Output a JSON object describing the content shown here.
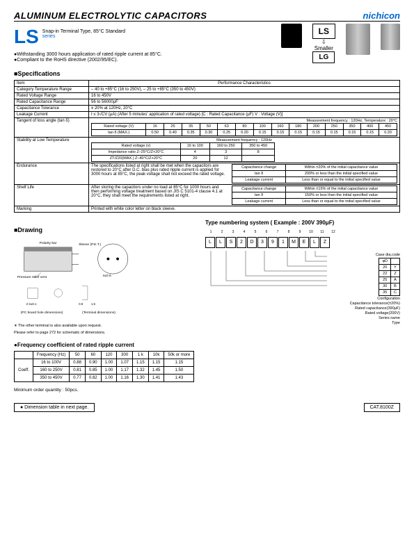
{
  "header": {
    "title": "ALUMINUM  ELECTROLYTIC  CAPACITORS",
    "brand": "nichicon"
  },
  "series": {
    "code": "LS",
    "desc": "Snap-in Terminal Type, 85°C Standard",
    "word": "series"
  },
  "features": [
    "●Withstanding 3000 hours application of rated ripple current at 85°C.",
    "●Compliant to the RoHS directive (2002/95/EC)."
  ],
  "badges": {
    "ls": "LS",
    "smaller": "Smaller",
    "lg": "LG"
  },
  "sec_spec": "■Specifications",
  "spec": {
    "head_item": "Item",
    "head_perf": "Performance Characteristics",
    "rows": [
      {
        "label": "Category Temperature Range",
        "val": "– 40 to +85°C (16 to 250V), – 25 to +85°C (350 to 450V)"
      },
      {
        "label": "Rated Voltage Range",
        "val": "16 to 450V"
      },
      {
        "label": "Rated Capacitance Range",
        "val": "56 to 56000μF"
      },
      {
        "label": "Capacitance Tolerance",
        "val": "± 20% at 120Hz, 20°C"
      },
      {
        "label": "Leakage Current",
        "val": "I ≤ 3√CV (μA) (After 5 minutes' application of rated voltage) [C : Rated Capacitance (μF)  V : Voltage (V)]"
      }
    ],
    "tan_label": "Tangent of loss angle (tan δ)",
    "tan_note": "Measurement frequency : 120Hz,  Temperature : 20°C",
    "tan_head": [
      "Rated voltage (V)",
      "16",
      "25",
      "35",
      "50",
      "63",
      "80",
      "100",
      "160",
      "180",
      "200",
      "250",
      "350",
      "400",
      "450"
    ],
    "tan_row": [
      "tan δ (MAX.)",
      "0.50",
      "0.40",
      "0.35",
      "0.30",
      "0.25",
      "0.20",
      "0.15",
      "0.15",
      "0.15",
      "0.15",
      "0.15",
      "0.15",
      "0.15",
      "0.20"
    ],
    "stab_label": "Stability at Low Temperature",
    "stab_note": "Measurement frequency : 120Hz",
    "stab_head": [
      "Rated voltage (v)",
      "16 to 100",
      "160 to 250",
      "350 to 450"
    ],
    "stab_r1": [
      "Impedance ratio Z–25°C/Z+20°C",
      "4",
      "3",
      "8"
    ],
    "stab_r2": [
      "ZT/Z20(MAX.) Z–40°C/Z+20°C",
      "20",
      "12",
      ""
    ],
    "end_label": "Endurance",
    "end_text": "The specifications listed at right shall be met when the capacitors are restored to 20°C after D.C. bias plus rated ripple current is applied for 3000 hours at 85°C, the peak voltage shall not exceed the rated voltage.",
    "end_t": [
      [
        "Capacitance change",
        "Within ±20% of the initial capacitance value"
      ],
      [
        "tan δ",
        "200% or less than the initial specified value"
      ],
      [
        "Leakage current",
        "Less than or equal to the initial specified value"
      ]
    ],
    "shelf_label": "Shelf Life",
    "shelf_text": "After storing the capacitors under no load at 85°C for 1000 hours and then performing voltage treatment based on JIS C 5101-4 clause 4.1 at 20°C, they shall meet the requirements listed at right.",
    "shelf_t": [
      [
        "Capacitance change",
        "Within ±15% of the initial capacitance value"
      ],
      [
        "tan δ",
        "150% or less than the initial specified value"
      ],
      [
        "Leakage current",
        "Less than or equal to the initial specified value"
      ]
    ],
    "mark_label": "Marking",
    "mark_val": "Printed with white color letter on black sleeve."
  },
  "sec_draw": "■Drawing",
  "drawing": {
    "labels": {
      "polarity": "Polarity bar",
      "sleeve": "Sleeve (P.E.T.)",
      "vent": "Pressure relief vent",
      "pcb": "(PC board hole dimensions)",
      "term": "(Terminal dimensions)"
    },
    "note1": "∗ The other terminal is also available upon request.",
    "note2": "  Please refer to page 272 for schematic of dimensions."
  },
  "type_num": {
    "title": "Type numbering system ( Example : 200V  390μF)",
    "nums": [
      "1",
      "2",
      "3",
      "4",
      "5",
      "6",
      "7",
      "8",
      "9",
      "10",
      "11",
      "12"
    ],
    "chars": [
      "L",
      "L",
      "S",
      "2",
      "D",
      "3",
      "9",
      "1",
      "M",
      "E",
      "L",
      "Z"
    ],
    "labels": [
      "Case dia.code",
      "Configuration",
      "Capacitance tolerance(±20%)",
      "Rated capacitance(390μF)",
      "Rated voltage(200V)",
      "Series name",
      "Type"
    ],
    "case_head": [
      "φD",
      ""
    ],
    "case_rows": [
      [
        "20",
        "Y"
      ],
      [
        "22",
        "Z"
      ],
      [
        "25",
        "A"
      ],
      [
        "30",
        "B"
      ],
      [
        "35",
        "C"
      ]
    ]
  },
  "sec_freq": "●Frequency coefficient of rated ripple current",
  "freq": {
    "head": [
      "Frequency (Hz)",
      "50",
      "60",
      "120",
      "300",
      "1 k",
      "10k",
      "50k or more"
    ],
    "label": "Coeff.",
    "rows": [
      [
        "16 to 100V",
        "0.88",
        "0.90",
        "1.00",
        "1.07",
        "1.15",
        "1.15",
        "1.15"
      ],
      [
        "160 to 250V",
        "0.81",
        "0.85",
        "1.00",
        "1.17",
        "1.32",
        "1.45",
        "1.50"
      ],
      [
        "350 to 450V",
        "0.77",
        "0.82",
        "1.00",
        "1.16",
        "1.30",
        "1.41",
        "1.43"
      ]
    ]
  },
  "min_order": "Minimum order quantity : 50pcs.",
  "footer": {
    "left": "● Dimension table in next page.",
    "right": "CAT.8100Z"
  }
}
